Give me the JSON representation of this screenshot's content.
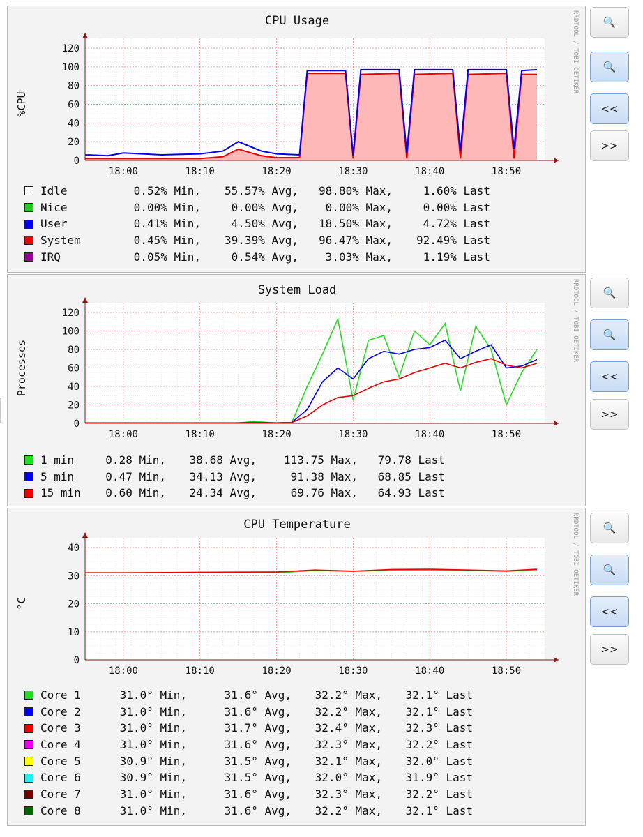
{
  "watermark": "RRDTOOL / TOBI OETIKER",
  "buttons": {
    "zoom_in": "+",
    "zoom_out": "−",
    "back": "<<",
    "forward": ">>"
  },
  "graphs": [
    {
      "title": "CPU Usage",
      "ylabel": "%CPU",
      "x_ticks": [
        "18:00",
        "18:10",
        "18:20",
        "18:30",
        "18:40",
        "18:50"
      ],
      "y_ticks": [
        "0",
        "20",
        "40",
        "60",
        "80",
        "100",
        "120"
      ],
      "legend": [
        {
          "label": "Idle",
          "color": "#ffffff",
          "min": "0.52% Min,",
          "avg": "55.57% Avg,",
          "max": "98.80% Max,",
          "last": "1.60% Last"
        },
        {
          "label": "Nice",
          "color": "#22cc22",
          "min": "0.00% Min,",
          "avg": "0.00% Avg,",
          "max": "0.00% Max,",
          "last": "0.00% Last"
        },
        {
          "label": "User",
          "color": "#0000ee",
          "min": "0.41% Min,",
          "avg": "4.50% Avg,",
          "max": "18.50% Max,",
          "last": "4.72% Last"
        },
        {
          "label": "System",
          "color": "#ee0000",
          "min": "0.45% Min,",
          "avg": "39.39% Avg,",
          "max": "96.47% Max,",
          "last": "92.49% Last"
        },
        {
          "label": "IRQ",
          "color": "#990099",
          "min": "0.05% Min,",
          "avg": "0.54% Avg,",
          "max": "3.03% Max,",
          "last": "1.19% Last"
        }
      ]
    },
    {
      "title": "System Load",
      "ylabel": "Processes",
      "x_ticks": [
        "18:00",
        "18:10",
        "18:20",
        "18:30",
        "18:40",
        "18:50"
      ],
      "y_ticks": [
        "0",
        "20",
        "40",
        "60",
        "80",
        "100",
        "120"
      ],
      "legend": [
        {
          "label": "1 min",
          "color": "#22dd22",
          "min": "0.28 Min,",
          "avg": "38.68 Avg,",
          "max": "113.75 Max,",
          "last": "79.78 Last"
        },
        {
          "label": "5 min",
          "color": "#0000ee",
          "min": "0.47 Min,",
          "avg": "34.13 Avg,",
          "max": "91.38 Max,",
          "last": "68.85 Last"
        },
        {
          "label": "15 min",
          "color": "#ee0000",
          "min": "0.60 Min,",
          "avg": "24.34 Avg,",
          "max": "69.76 Max,",
          "last": "64.93 Last"
        }
      ]
    },
    {
      "title": "CPU Temperature",
      "ylabel": "°C",
      "x_ticks": [
        "18:00",
        "18:10",
        "18:20",
        "18:30",
        "18:40",
        "18:50"
      ],
      "y_ticks": [
        "0",
        "10",
        "20",
        "30",
        "40"
      ],
      "legend": [
        {
          "label": "Core 1",
          "color": "#22dd22",
          "min": "31.0° Min,",
          "avg": "31.6° Avg,",
          "max": "32.2° Max,",
          "last": "32.1° Last"
        },
        {
          "label": "Core 2",
          "color": "#0000ee",
          "min": "31.0° Min,",
          "avg": "31.6° Avg,",
          "max": "32.2° Max,",
          "last": "32.1° Last"
        },
        {
          "label": "Core 3",
          "color": "#ee0000",
          "min": "31.0° Min,",
          "avg": "31.7° Avg,",
          "max": "32.4° Max,",
          "last": "32.3° Last"
        },
        {
          "label": "Core 4",
          "color": "#ee00ee",
          "min": "31.0° Min,",
          "avg": "31.6° Avg,",
          "max": "32.3° Max,",
          "last": "32.2° Last"
        },
        {
          "label": "Core 5",
          "color": "#ffff00",
          "min": "30.9° Min,",
          "avg": "31.5° Avg,",
          "max": "32.1° Max,",
          "last": "32.0° Last"
        },
        {
          "label": "Core 6",
          "color": "#22eeee",
          "min": "30.9° Min,",
          "avg": "31.5° Avg,",
          "max": "32.0° Max,",
          "last": "31.9° Last"
        },
        {
          "label": "Core 7",
          "color": "#770000",
          "min": "31.0° Min,",
          "avg": "31.6° Avg,",
          "max": "32.3° Max,",
          "last": "32.2° Last"
        },
        {
          "label": "Core 8",
          "color": "#006600",
          "min": "31.0° Min,",
          "avg": "31.6° Avg,",
          "max": "32.2° Max,",
          "last": "32.1° Last"
        }
      ]
    }
  ],
  "chart_data": [
    {
      "type": "area",
      "title": "CPU Usage",
      "ylabel": "%CPU",
      "ylim": [
        0,
        120
      ],
      "x": [
        "17:55",
        "17:58",
        "18:00",
        "18:05",
        "18:10",
        "18:13",
        "18:15",
        "18:18",
        "18:20",
        "18:23",
        "18:24",
        "18:29",
        "18:30",
        "18:31",
        "18:36",
        "18:37",
        "18:38",
        "18:43",
        "18:44",
        "18:45",
        "18:50",
        "18:51",
        "18:52",
        "18:54"
      ],
      "series": [
        {
          "name": "System",
          "values": [
            2,
            2,
            2,
            2,
            2,
            4,
            12,
            5,
            3,
            3,
            93,
            93,
            2,
            92,
            93,
            2,
            92,
            93,
            2,
            92,
            93,
            2,
            92,
            92
          ]
        },
        {
          "name": "User",
          "values": [
            6,
            5,
            8,
            6,
            7,
            10,
            20,
            10,
            7,
            6,
            96,
            96,
            5,
            97,
            97,
            8,
            97,
            97,
            10,
            97,
            97,
            12,
            96,
            97
          ]
        }
      ]
    },
    {
      "type": "line",
      "title": "System Load",
      "ylabel": "Processes",
      "ylim": [
        0,
        120
      ],
      "x": [
        "17:55",
        "18:10",
        "18:15",
        "18:17",
        "18:20",
        "18:22",
        "18:24",
        "18:26",
        "18:28",
        "18:30",
        "18:32",
        "18:34",
        "18:36",
        "18:38",
        "18:40",
        "18:42",
        "18:44",
        "18:46",
        "18:48",
        "18:50",
        "18:52",
        "18:54"
      ],
      "series": [
        {
          "name": "1 min",
          "values": [
            0.5,
            0.5,
            0.5,
            2,
            0.5,
            1,
            40,
            75,
            113,
            25,
            90,
            95,
            50,
            100,
            85,
            108,
            35,
            105,
            80,
            20,
            55,
            80
          ]
        },
        {
          "name": "5 min",
          "values": [
            0.5,
            0.5,
            0.5,
            1,
            0.5,
            1,
            15,
            45,
            60,
            48,
            70,
            78,
            75,
            80,
            82,
            90,
            70,
            78,
            85,
            60,
            62,
            69
          ]
        },
        {
          "name": "15 min",
          "values": [
            0.6,
            0.6,
            0.6,
            0.8,
            0.6,
            1,
            8,
            20,
            28,
            30,
            38,
            45,
            48,
            55,
            60,
            65,
            60,
            66,
            70,
            63,
            60,
            65
          ]
        }
      ]
    },
    {
      "type": "line",
      "title": "CPU Temperature",
      "ylabel": "°C",
      "ylim": [
        0,
        40
      ],
      "x": [
        "17:55",
        "18:00",
        "18:10",
        "18:20",
        "18:25",
        "18:30",
        "18:35",
        "18:40",
        "18:45",
        "18:50",
        "18:54"
      ],
      "series": [
        {
          "name": "Core 1",
          "values": [
            31.0,
            31.0,
            31.0,
            31.0,
            31.8,
            31.5,
            32.0,
            32.0,
            31.9,
            31.5,
            32.1
          ]
        },
        {
          "name": "Core 3",
          "values": [
            31.0,
            31.0,
            31.2,
            31.3,
            32.0,
            31.6,
            32.2,
            32.3,
            32.0,
            31.7,
            32.3
          ]
        }
      ]
    }
  ]
}
